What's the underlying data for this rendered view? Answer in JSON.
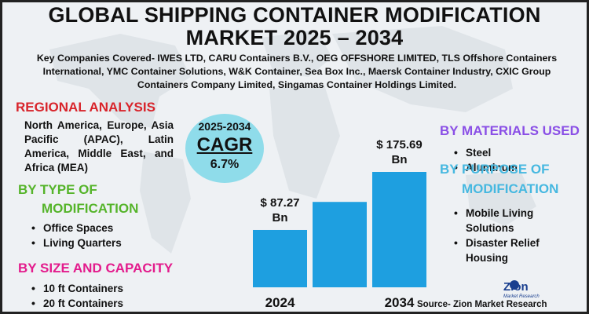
{
  "title": "GLOBAL SHIPPING CONTAINER MODIFICATION MARKET 2025 – 2034",
  "companies": "Key Companies Covered- IWES LTD, CARU Containers B.V., OEG OFFSHORE LIMITED, TLS Offshore Containers International, YMC Container Solutions, W&K Container, Sea Box Inc., Maersk Container Industry, CXIC Group Containers Company Limited, Singamas Container Holdings Limited.",
  "regional": {
    "heading": "REGIONAL ANALYSIS",
    "text": "North America, Europe, Asia Pacific (APAC), Latin America, Middle East, and Africa (MEA)"
  },
  "type_of_modification": {
    "heading_line1": "BY TYPE OF",
    "heading_line2": "MODIFICATION",
    "items": [
      "Office Spaces",
      "Living Quarters"
    ]
  },
  "size_and_capacity": {
    "heading": "BY SIZE AND CAPACITY",
    "items": [
      "10 ft Containers",
      "20 ft Containers"
    ]
  },
  "materials": {
    "heading": "BY MATERIALS USED",
    "items": [
      "Steel",
      "Aluminum"
    ]
  },
  "purpose": {
    "heading_line1": "BY PURPOSE OF",
    "heading_line2": "MODIFICATION",
    "items": [
      {
        "line1": "Mobile Living",
        "line2": "Solutions"
      },
      {
        "line1": "Disaster Relief",
        "line2": "Housing"
      }
    ]
  },
  "cagr": {
    "years": "2025-2034",
    "label": "CAGR",
    "value": "6.7%"
  },
  "bullet_glyph": "•",
  "colors": {
    "bar": "#1e9fe0",
    "red": "#d8242b",
    "green": "#55b42a",
    "magenta": "#e31b8c",
    "purple": "#8a4fe6",
    "sky": "#46b8e0",
    "cagr_circle": "#8fdcea"
  },
  "chart_data": {
    "type": "bar",
    "categories": [
      "2024",
      "",
      "2034"
    ],
    "values": [
      87.27,
      130,
      175.69
    ],
    "value_labels": [
      {
        "line1": "$ 87.27",
        "line2": "Bn"
      },
      null,
      {
        "line1": "$ 175.69",
        "line2": "Bn"
      }
    ],
    "unit": "Bn",
    "grid": false
  },
  "logo": {
    "name": "Zion",
    "tagline": "Market Research"
  },
  "source": "Source- Zion Market Research"
}
